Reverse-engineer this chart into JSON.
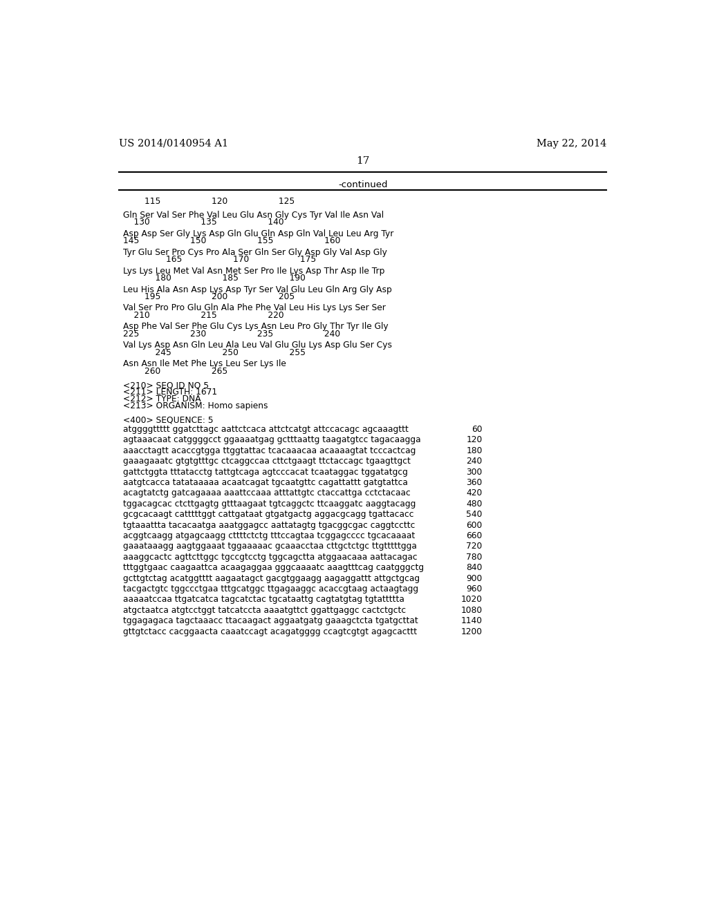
{
  "header_left": "US 2014/0140954 A1",
  "header_right": "May 22, 2014",
  "page_number": "17",
  "continued_label": "-continued",
  "background_color": "#ffffff",
  "text_color": "#000000",
  "protein_rows": [
    {
      "seq": "Gln Ser Val Ser Phe Val Leu Glu Asn Gly Cys Tyr Val Ile Asn Val",
      "num": "    130                   135                   140"
    },
    {
      "seq": "Asp Asp Ser Gly Lys Asp Gln Glu Gln Asp Gln Val Leu Leu Arg Tyr",
      "num": "145                   150                   155                   160"
    },
    {
      "seq": "Tyr Glu Ser Pro Cys Pro Ala Ser Gln Ser Gly Asp Gly Val Asp Gly",
      "num": "                165                   170                   175"
    },
    {
      "seq": "Lys Lys Leu Met Val Asn Met Ser Pro Ile Lys Asp Thr Asp Ile Trp",
      "num": "            180                   185                   190"
    },
    {
      "seq": "Leu His Ala Asn Asp Lys Asp Tyr Ser Val Glu Leu Gln Arg Gly Asp",
      "num": "        195                   200                   205"
    },
    {
      "seq": "Val Ser Pro Pro Glu Gln Ala Phe Phe Val Leu His Lys Lys Ser Ser",
      "num": "    210                   215                   220"
    },
    {
      "seq": "Asp Phe Val Ser Phe Glu Cys Lys Asn Leu Pro Gly Thr Tyr Ile Gly",
      "num": "225                   230                   235                   240"
    },
    {
      "seq": "Val Lys Asp Asn Gln Leu Ala Leu Val Glu Glu Lys Asp Glu Ser Cys",
      "num": "            245                   250                   255"
    },
    {
      "seq": "Asn Asn Ile Met Phe Lys Leu Ser Lys Ile",
      "num": "        260                   265"
    }
  ],
  "metadata_lines": [
    "<210> SEQ ID NO 5",
    "<211> LENGTH: 1671",
    "<212> TYPE: DNA",
    "<213> ORGANISM: Homo sapiens",
    "",
    "<400> SEQUENCE: 5"
  ],
  "dna_lines": [
    {
      "seq": "atggggttttt ggatcttagc aattctcaca attctcatgt attccacagc agcaaagttt",
      "num": "60"
    },
    {
      "seq": "agtaaacaat catggggcct ggaaaatgag gctttaattg taagatgtcc tagacaagga",
      "num": "120"
    },
    {
      "seq": "aaacctagtt acaccgtgga ttggtattac tcacaaacaa acaaaagtat tcccactcag",
      "num": "180"
    },
    {
      "seq": "gaaagaaatc gtgtgtttgc ctcaggccaa cttctgaagt ttctaccagc tgaagttgct",
      "num": "240"
    },
    {
      "seq": "gattctggta tttatacctg tattgtcaga agtcccacat tcaataggac tggatatgcg",
      "num": "300"
    },
    {
      "seq": "aatgtcacca tatataaaaa acaatcagat tgcaatgttc cagattattt gatgtattca",
      "num": "360"
    },
    {
      "seq": "acagtatctg gatcagaaaa aaattccaaa atttattgtc ctaccattga cctctacaac",
      "num": "420"
    },
    {
      "seq": "tggacagcac ctcttgagtg gtttaagaat tgtcaggctc ttcaaggatc aaggtacagg",
      "num": "480"
    },
    {
      "seq": "gcgcacaagt catttttggt cattgataat gtgatgactg aggacgcagg tgattacacc",
      "num": "540"
    },
    {
      "seq": "tgtaaattta tacacaatga aaatggagcc aattatagtg tgacggcgac caggtccttc",
      "num": "600"
    },
    {
      "seq": "acggtcaagg atgagcaagg cttttctctg tttccagtaa tcggagcccc tgcacaaaat",
      "num": "660"
    },
    {
      "seq": "gaaataaagg aagtggaaat tggaaaaac gcaaacctaa cttgctctgc ttgtttttgga",
      "num": "720"
    },
    {
      "seq": "aaaggcactc agttcttggc tgccgtcctg tggcagctta atggaacaaa aattacagac",
      "num": "780"
    },
    {
      "seq": "tttggtgaac caagaattca acaagaggaa gggcaaaatc aaagtttcag caatgggctg",
      "num": "840"
    },
    {
      "seq": "gcttgtctag acatggtttt aagaatagct gacgtggaagg aagaggattt attgctgcag",
      "num": "900"
    },
    {
      "seq": "tacgactgtc tggccctgaa tttgcatggc ttgagaaggc acaccgtaag actaagtagg",
      "num": "960"
    },
    {
      "seq": "aaaaatccaa ttgatcatca tagcatctac tgcataattg cagtatgtag tgtattttta",
      "num": "1020"
    },
    {
      "seq": "atgctaatca atgtcctggt tatcatccta aaaatgttct ggattgaggc cactctgctc",
      "num": "1080"
    },
    {
      "seq": "tggagagaca tagctaaacc ttacaagact aggaatgatg gaaagctcta tgatgcttat",
      "num": "1140"
    },
    {
      "seq": "gttgtctacc cacggaacta caaatccagt acagatgggg ccagtcgtgt agagcacttt",
      "num": "1200"
    }
  ]
}
